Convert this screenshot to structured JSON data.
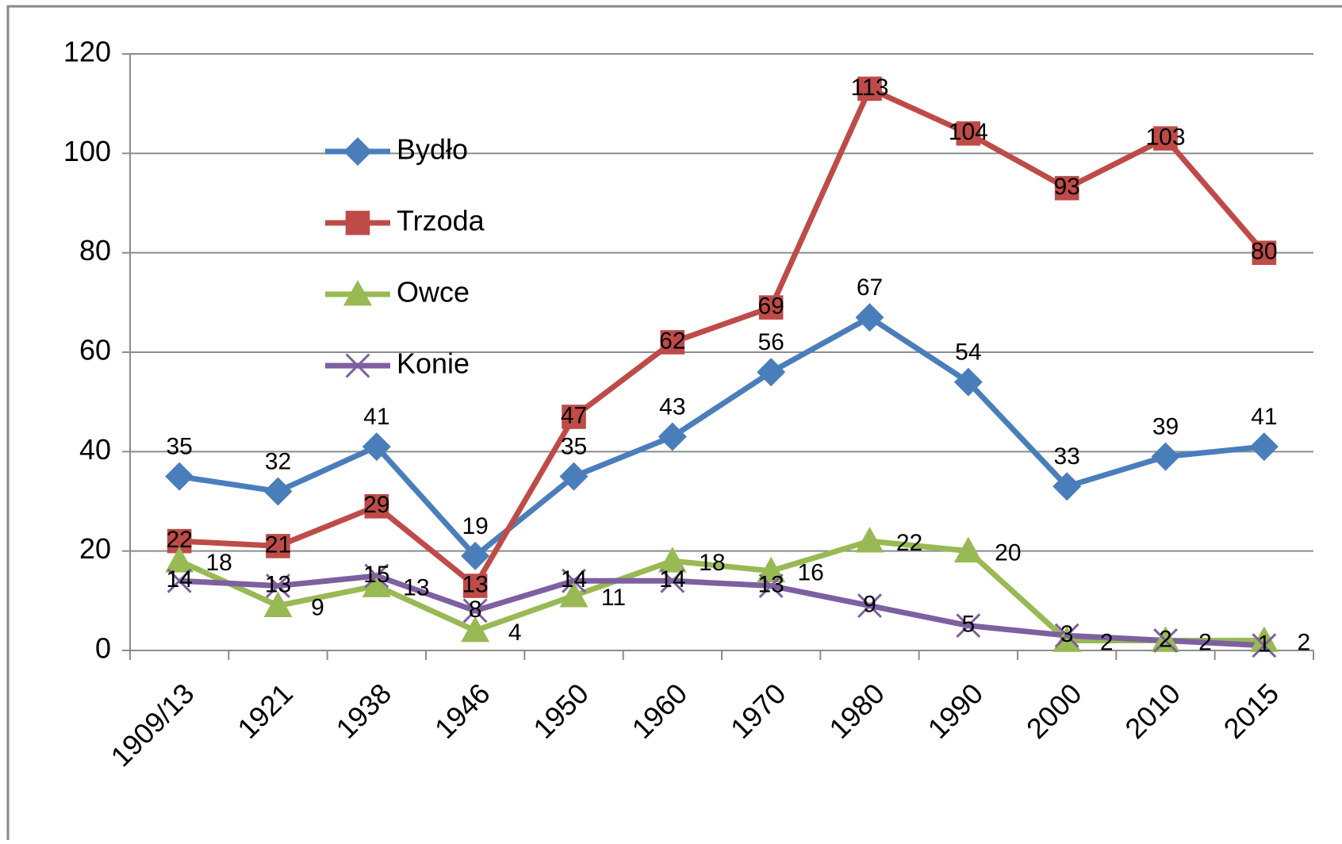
{
  "chart_data": {
    "type": "line",
    "categories": [
      "1909/13",
      "1921",
      "1938",
      "1946",
      "1950",
      "1960",
      "1970",
      "1980",
      "1990",
      "2000",
      "2010",
      "2015"
    ],
    "series": [
      {
        "name": "Bydło",
        "color": "#4a7ebb",
        "marker": "diamond",
        "values": [
          35,
          32,
          41,
          19,
          35,
          43,
          56,
          67,
          54,
          33,
          39,
          41
        ]
      },
      {
        "name": "Trzoda",
        "color": "#be4b48",
        "marker": "square",
        "values": [
          22,
          21,
          29,
          13,
          47,
          62,
          69,
          113,
          104,
          93,
          103,
          80
        ]
      },
      {
        "name": "Owce",
        "color": "#98b954",
        "marker": "triangle",
        "values": [
          18,
          9,
          13,
          4,
          11,
          18,
          16,
          22,
          20,
          2,
          2,
          2
        ]
      },
      {
        "name": "Konie",
        "color": "#7d60a0",
        "marker": "x",
        "values": [
          14,
          13,
          15,
          8,
          14,
          14,
          13,
          9,
          5,
          3,
          2,
          1
        ]
      }
    ],
    "ylim": [
      0,
      120
    ],
    "yticks": [
      0,
      20,
      40,
      60,
      80,
      100,
      120
    ],
    "grid": true,
    "legend": "upper-left"
  }
}
